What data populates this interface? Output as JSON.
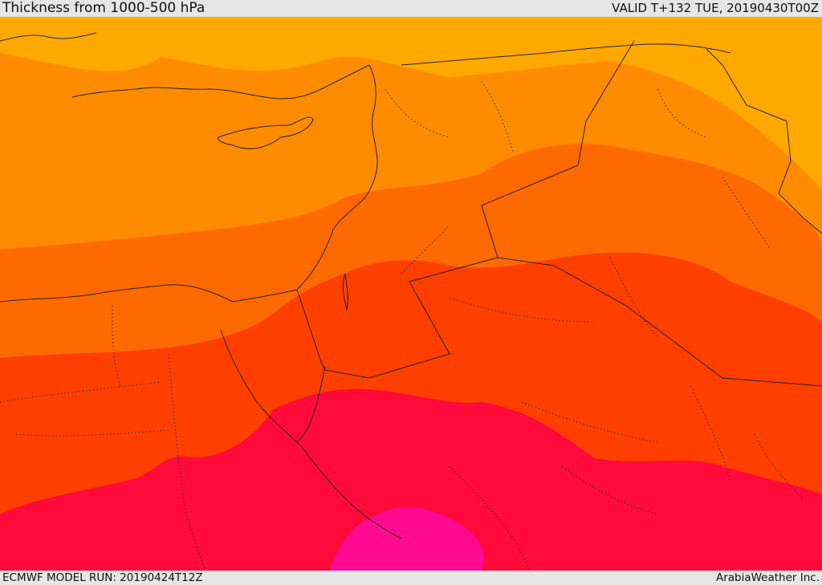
{
  "header": {
    "title": "Thickness from 1000-500 hPa",
    "valid": "VALID T+132 TUE, 20190430T00Z"
  },
  "footer": {
    "model_run": "ECMWF MODEL RUN: 20190424T12Z",
    "brand": "ArabiaWeather Inc."
  },
  "map": {
    "palette": [
      "#ffb200",
      "#ff8c00",
      "#ff6a00",
      "#ff3f00",
      "#ff0a3a",
      "#ff0a90"
    ]
  }
}
